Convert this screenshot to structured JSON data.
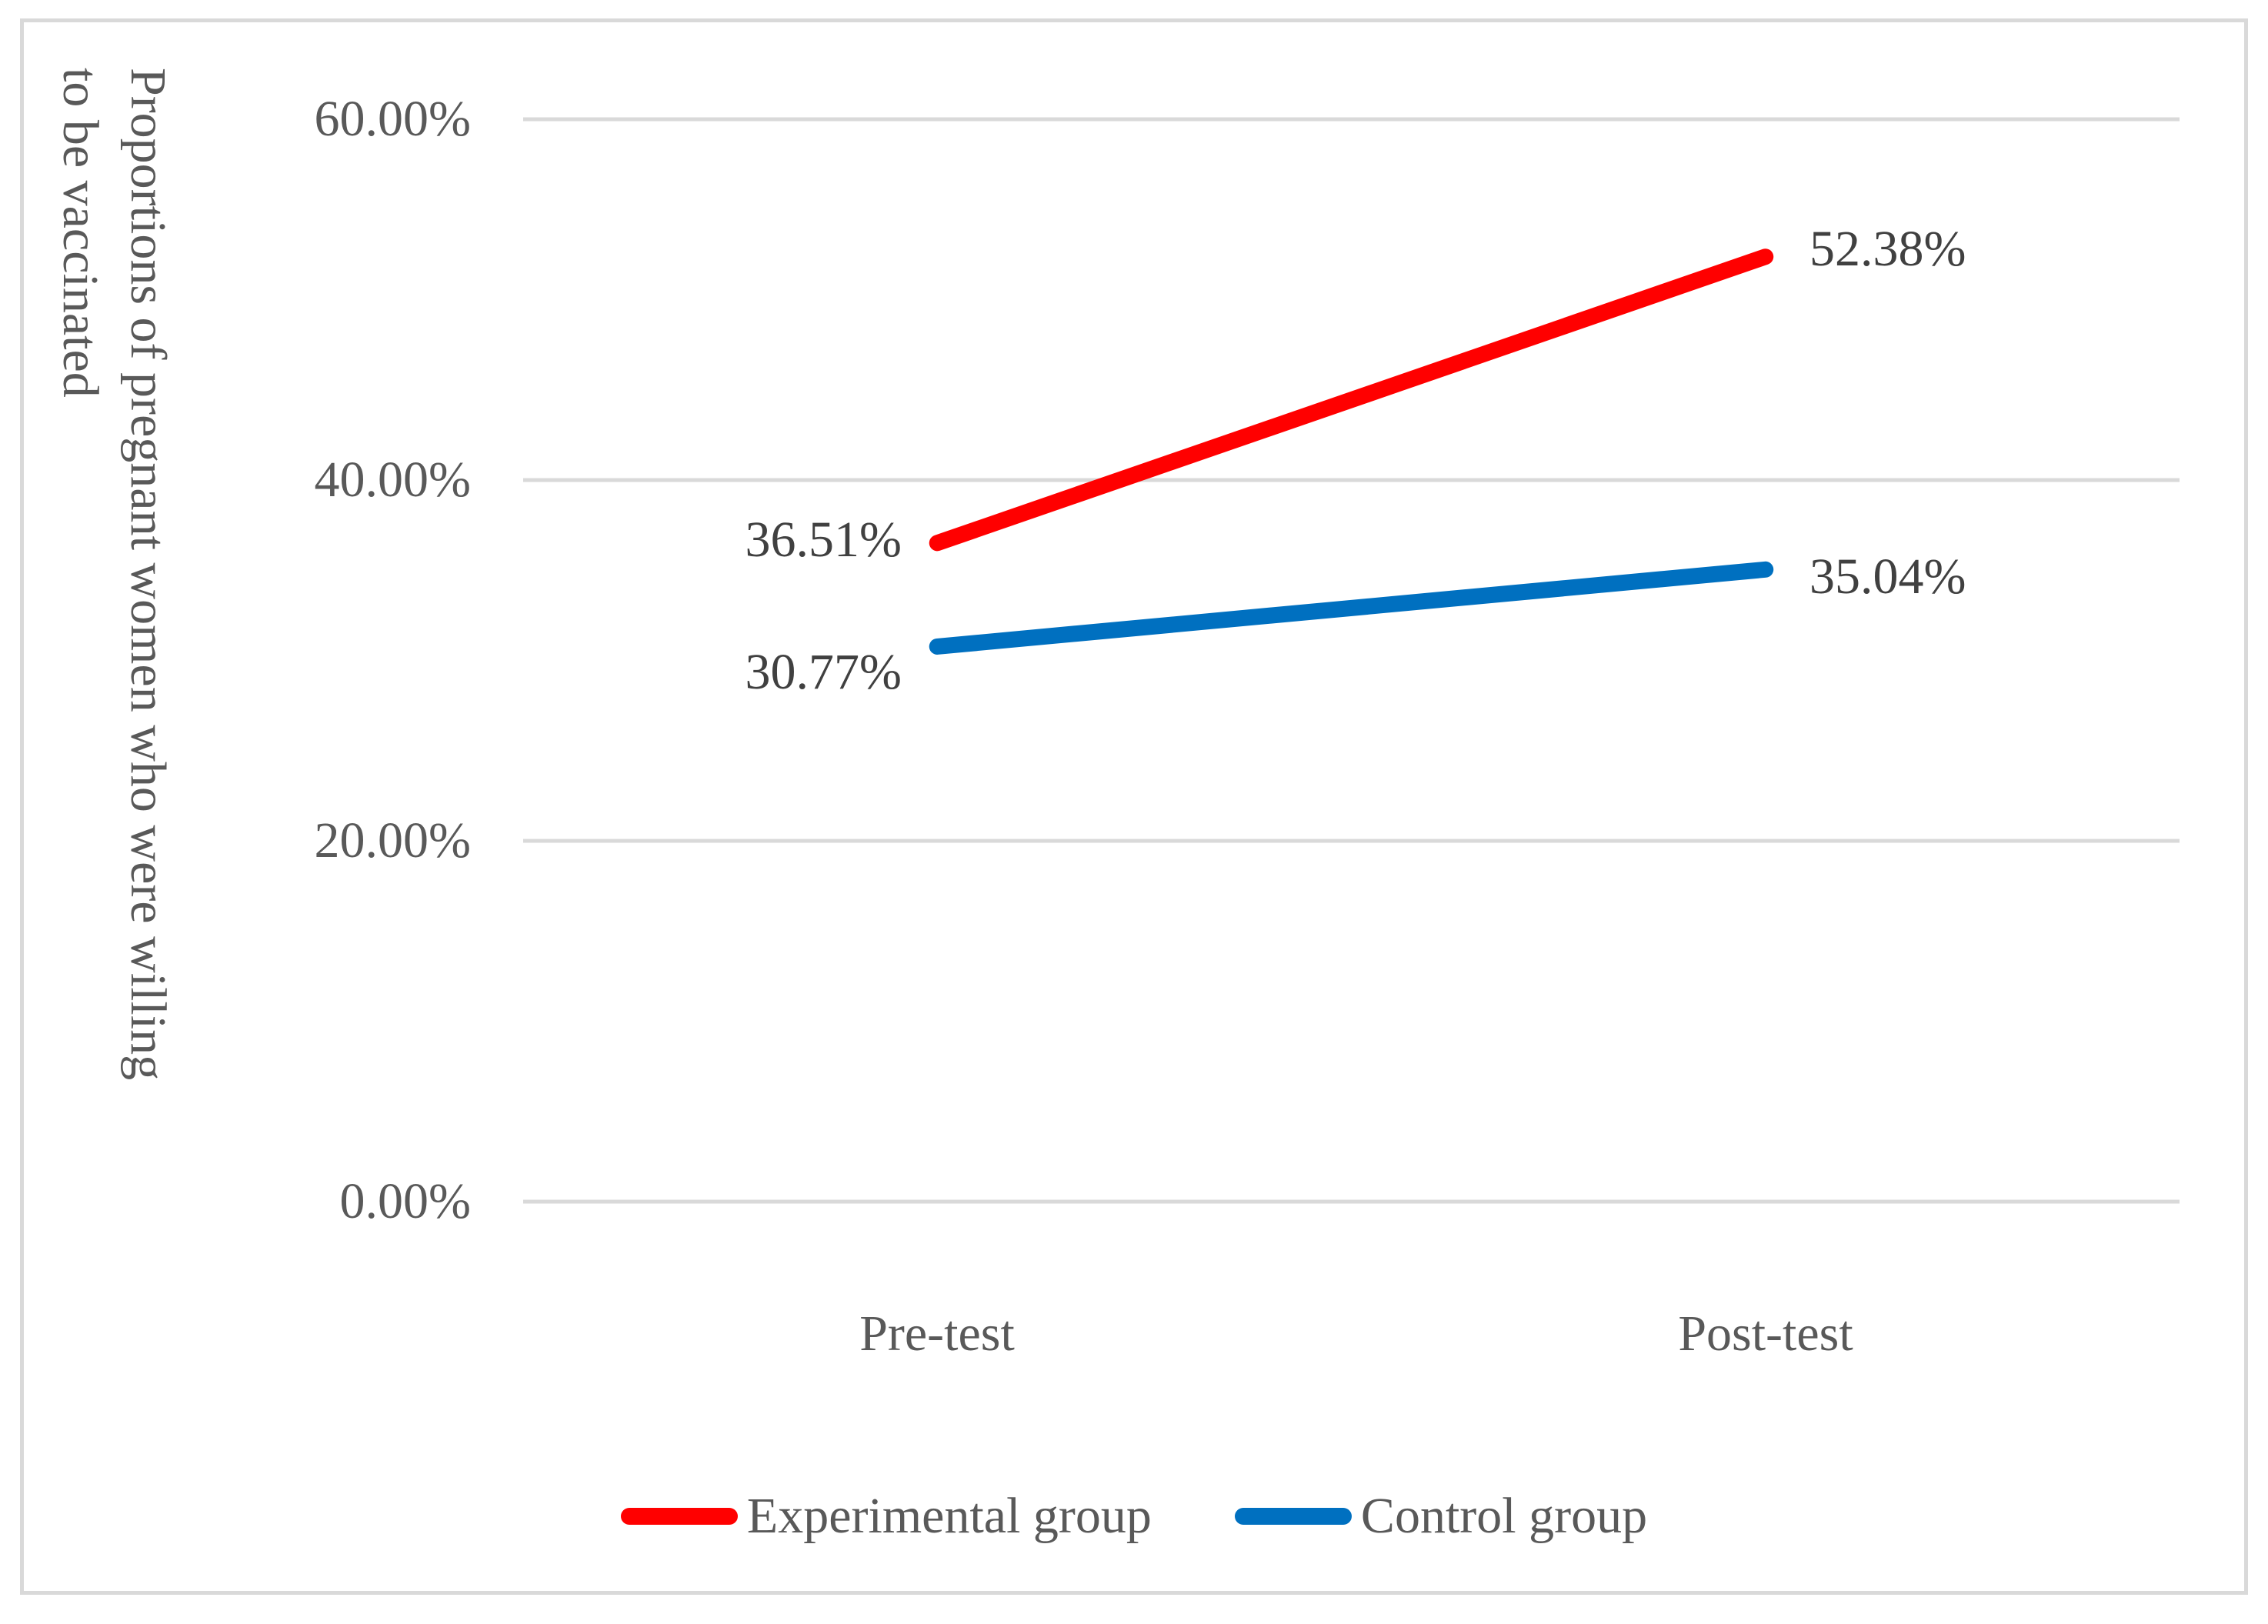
{
  "chart_data": {
    "type": "line",
    "categories": [
      "Pre-test",
      "Post-test"
    ],
    "series": [
      {
        "name": "Experimental group",
        "color": "#FF0000",
        "values": [
          36.51,
          52.38
        ],
        "point_labels": [
          "36.51%",
          "52.38%"
        ]
      },
      {
        "name": "Control group",
        "color": "#0070C0",
        "values": [
          30.77,
          35.04
        ],
        "point_labels": [
          "30.77%",
          "35.04%"
        ]
      }
    ],
    "title": "",
    "xlabel": "",
    "ylabel": "Proportions of pregnant women who were willing to be vaccinated",
    "ylabel_lines": [
      "Proportions of pregnant women who were willing",
      "to be vaccinated"
    ],
    "yticks": [
      "60.00%",
      "40.00%",
      "20.00%",
      "0.00%"
    ],
    "ytick_values": [
      60,
      40,
      20,
      0
    ],
    "ylim": [
      0,
      60
    ],
    "grid": true,
    "legend_position": "bottom"
  },
  "colors": {
    "grid": "#D9D9D9",
    "frame_border": "#D9D9D9",
    "axis_text": "#595959",
    "data_label_text": "#404040",
    "experimental_line": "#FF0000",
    "control_line": "#0070C0"
  }
}
